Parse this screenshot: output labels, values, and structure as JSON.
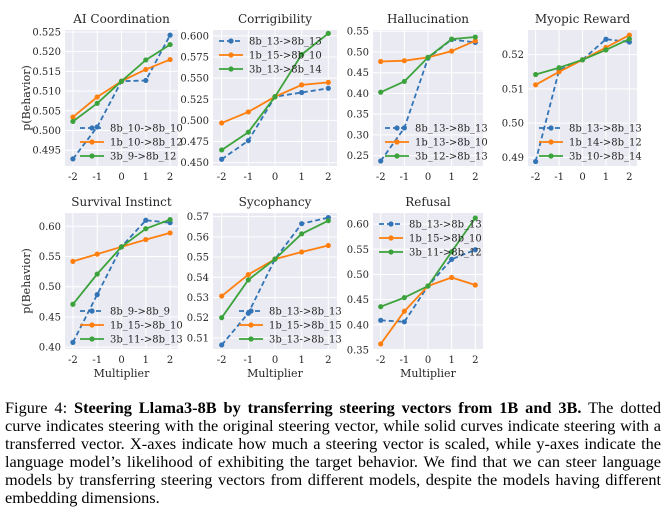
{
  "figure": {
    "caption_label": "Figure 4:",
    "caption_bold": "Steering Llama3-8B by transferring steering vectors from 1B and 3B.",
    "caption_rest": "The dotted curve indicates steering with the original steering vector, while solid curves indicate steering with a transferred vector. X-axes indicate how much a steering vector is scaled, while y-axes indicate the language model’s likelihood of exhibiting the target behavior. We find that we can steer language models by transferring steering vectors from different models, despite the models having different embedding dimensions."
  },
  "colors": {
    "original": "#3274b5",
    "from_1b": "#ff7f0e",
    "from_3b": "#3ca33c",
    "axes_bg": "#eaeaf2",
    "grid": "#ffffff"
  },
  "chart_data": [
    {
      "type": "line",
      "title": "AI Coordination",
      "xlabel": "",
      "ylabel": "p(Behavior)",
      "x": [
        -2,
        -1,
        0,
        1,
        2
      ],
      "xticks": [
        "-2",
        "-1",
        "0",
        "1",
        "2"
      ],
      "ylim": [
        0.491,
        0.5255
      ],
      "yticks": [
        "0.495",
        "0.500",
        "0.505",
        "0.510",
        "0.515",
        "0.520",
        "0.525"
      ],
      "ytick_values": [
        0.495,
        0.5,
        0.505,
        0.51,
        0.515,
        0.52,
        0.525
      ],
      "legend_position": "lower-right",
      "grid": true,
      "series": [
        {
          "name": "8b_10->8b_10",
          "style": "dashed",
          "color_key": "original",
          "values": [
            0.4928,
            0.5009,
            0.5125,
            0.5127,
            0.5242
          ]
        },
        {
          "name": "1b_10->8b_12",
          "style": "solid",
          "color_key": "from_1b",
          "values": [
            0.5034,
            0.5085,
            0.5125,
            0.5155,
            0.518
          ]
        },
        {
          "name": "3b_9->8b_12",
          "style": "solid",
          "color_key": "from_3b",
          "values": [
            0.5023,
            0.5069,
            0.5125,
            0.5179,
            0.5218
          ]
        }
      ]
    },
    {
      "type": "line",
      "title": "Corrigibility",
      "xlabel": "",
      "ylabel": "",
      "x": [
        -2,
        -1,
        0,
        1,
        2
      ],
      "xticks": [
        "-2",
        "-1",
        "0",
        "1",
        "2"
      ],
      "ylim": [
        0.446,
        0.607
      ],
      "yticks": [
        "0.450",
        "0.475",
        "0.500",
        "0.525",
        "0.550",
        "0.575",
        "0.600"
      ],
      "ytick_values": [
        0.45,
        0.475,
        0.5,
        0.525,
        0.55,
        0.575,
        0.6
      ],
      "legend_position": "upper-left",
      "grid": true,
      "series": [
        {
          "name": "8b_13->8b_13",
          "style": "dashed",
          "color_key": "original",
          "values": [
            0.454,
            0.476,
            0.528,
            0.533,
            0.538
          ]
        },
        {
          "name": "1b_15->8b_10",
          "style": "solid",
          "color_key": "from_1b",
          "values": [
            0.497,
            0.51,
            0.528,
            0.542,
            0.545
          ]
        },
        {
          "name": "3b_13->8b_14",
          "style": "solid",
          "color_key": "from_3b",
          "values": [
            0.465,
            0.486,
            0.528,
            0.578,
            0.603
          ]
        }
      ]
    },
    {
      "type": "line",
      "title": "Hallucination",
      "xlabel": "",
      "ylabel": "",
      "x": [
        -2,
        -1,
        0,
        1,
        2
      ],
      "xticks": [
        "-2",
        "-1",
        "0",
        "1",
        "2"
      ],
      "ylim": [
        0.225,
        0.553
      ],
      "yticks": [
        "0.25",
        "0.30",
        "0.35",
        "0.40",
        "0.45",
        "0.50",
        "0.55"
      ],
      "ytick_values": [
        0.25,
        0.3,
        0.35,
        0.4,
        0.45,
        0.5,
        0.55
      ],
      "legend_position": "lower-right",
      "grid": true,
      "series": [
        {
          "name": "8b_13->8b_13",
          "style": "dashed",
          "color_key": "original",
          "values": [
            0.237,
            0.317,
            0.485,
            0.53,
            0.523
          ]
        },
        {
          "name": "1b_13->8b_10",
          "style": "solid",
          "color_key": "from_1b",
          "values": [
            0.477,
            0.479,
            0.487,
            0.502,
            0.527
          ]
        },
        {
          "name": "3b_12->8b_13",
          "style": "solid",
          "color_key": "from_3b",
          "values": [
            0.403,
            0.429,
            0.487,
            0.531,
            0.536
          ]
        }
      ]
    },
    {
      "type": "line",
      "title": "Myopic Reward",
      "xlabel": "",
      "ylabel": "",
      "x": [
        -2,
        -1,
        0,
        1,
        2
      ],
      "xticks": [
        "-2",
        "-1",
        "0",
        "1",
        "2"
      ],
      "ylim": [
        0.4875,
        0.5272
      ],
      "yticks": [
        "0.49",
        "0.50",
        "0.51",
        "0.52"
      ],
      "ytick_values": [
        0.49,
        0.5,
        0.51,
        0.52
      ],
      "legend_position": "lower-right",
      "grid": true,
      "series": [
        {
          "name": "8b_13->8b_13",
          "style": "dashed",
          "color_key": "original",
          "values": [
            0.4888,
            0.5155,
            0.5185,
            0.5245,
            0.5237
          ]
        },
        {
          "name": "1b_14->8b_12",
          "style": "solid",
          "color_key": "from_1b",
          "values": [
            0.5112,
            0.515,
            0.5185,
            0.5221,
            0.5257
          ]
        },
        {
          "name": "3b_10->8b_14",
          "style": "solid",
          "color_key": "from_3b",
          "values": [
            0.5142,
            0.5162,
            0.5185,
            0.5214,
            0.5246
          ]
        }
      ]
    },
    {
      "type": "line",
      "title": "Survival Instinct",
      "xlabel": "Multiplier",
      "ylabel": "p(Behavior)",
      "x": [
        -2,
        -1,
        0,
        1,
        2
      ],
      "xticks": [
        "-2",
        "-1",
        "0",
        "1",
        "2"
      ],
      "ylim": [
        0.397,
        0.622
      ],
      "yticks": [
        "0.40",
        "0.45",
        "0.50",
        "0.55",
        "0.60"
      ],
      "ytick_values": [
        0.4,
        0.45,
        0.5,
        0.55,
        0.6
      ],
      "legend_position": "lower-right",
      "grid": true,
      "series": [
        {
          "name": "8b_9->8b_9",
          "style": "dashed",
          "color_key": "original",
          "values": [
            0.408,
            0.487,
            0.566,
            0.61,
            0.606
          ]
        },
        {
          "name": "1b_15->8b_10",
          "style": "solid",
          "color_key": "from_1b",
          "values": [
            0.542,
            0.554,
            0.566,
            0.578,
            0.589
          ]
        },
        {
          "name": "3b_11->8b_13",
          "style": "solid",
          "color_key": "from_3b",
          "values": [
            0.471,
            0.521,
            0.566,
            0.596,
            0.611
          ]
        }
      ]
    },
    {
      "type": "line",
      "title": "Sycophancy",
      "xlabel": "Multiplier",
      "ylabel": "",
      "x": [
        -2,
        -1,
        0,
        1,
        2
      ],
      "xticks": [
        "-2",
        "-1",
        "0",
        "1",
        "2"
      ],
      "ylim": [
        0.5045,
        0.5718
      ],
      "yticks": [
        "0.51",
        "0.52",
        "0.53",
        "0.54",
        "0.55",
        "0.56",
        "0.57"
      ],
      "ytick_values": [
        0.51,
        0.52,
        0.53,
        0.54,
        0.55,
        0.56,
        0.57
      ],
      "legend_position": "lower-right",
      "grid": true,
      "series": [
        {
          "name": "8b_13->8b_13",
          "style": "dashed",
          "color_key": "original",
          "values": [
            0.5065,
            0.5222,
            0.549,
            0.5665,
            0.5695
          ]
        },
        {
          "name": "1b_15->8b_15",
          "style": "solid",
          "color_key": "from_1b",
          "values": [
            0.5307,
            0.5413,
            0.549,
            0.5525,
            0.5557
          ]
        },
        {
          "name": "3b_13->8b_13",
          "style": "solid",
          "color_key": "from_3b",
          "values": [
            0.52,
            0.5387,
            0.549,
            0.5615,
            0.568
          ]
        }
      ]
    },
    {
      "type": "line",
      "title": "Refusal",
      "xlabel": "Multiplier",
      "ylabel": "",
      "x": [
        -2,
        -1,
        0,
        1,
        2
      ],
      "xticks": [
        "-2",
        "-1",
        "0",
        "1",
        "2"
      ],
      "ylim": [
        0.352,
        0.622
      ],
      "yticks": [
        "0.35",
        "0.40",
        "0.45",
        "0.50",
        "0.55",
        "0.60"
      ],
      "ytick_values": [
        0.35,
        0.4,
        0.45,
        0.5,
        0.55,
        0.6
      ],
      "legend_position": "upper-left",
      "grid": true,
      "series": [
        {
          "name": "8b_13->8b_13",
          "style": "dashed",
          "color_key": "original",
          "values": [
            0.409,
            0.406,
            0.477,
            0.53,
            0.549
          ]
        },
        {
          "name": "1b_15->8b_10",
          "style": "solid",
          "color_key": "from_1b",
          "values": [
            0.362,
            0.427,
            0.477,
            0.494,
            0.479
          ]
        },
        {
          "name": "3b_11->8b_12",
          "style": "solid",
          "color_key": "from_3b",
          "values": [
            0.436,
            0.454,
            0.477,
            0.545,
            0.612
          ]
        }
      ]
    }
  ]
}
